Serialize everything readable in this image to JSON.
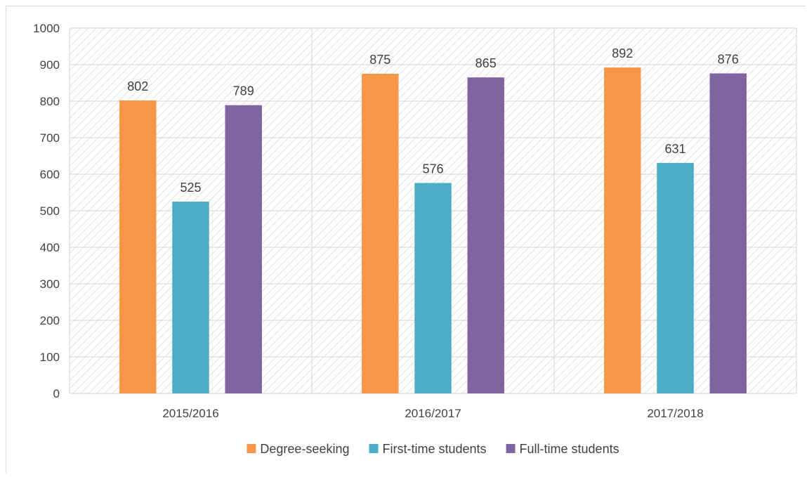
{
  "chart_data": {
    "type": "bar",
    "categories": [
      "2015/2016",
      "2016/2017",
      "2017/2018"
    ],
    "series": [
      {
        "name": "Degree-seeking",
        "values": [
          802,
          875,
          892
        ],
        "color": "#F79646"
      },
      {
        "name": "First-time students",
        "values": [
          525,
          576,
          631
        ],
        "color": "#4BACC6"
      },
      {
        "name": "Full-time students",
        "values": [
          789,
          865,
          876
        ],
        "color": "#8064A2"
      }
    ],
    "ylim": [
      0,
      1000
    ],
    "yticks": [
      0,
      100,
      200,
      300,
      400,
      500,
      600,
      700,
      800,
      900,
      1000
    ],
    "grid": true,
    "legend_position": "bottom",
    "data_labels": true
  }
}
